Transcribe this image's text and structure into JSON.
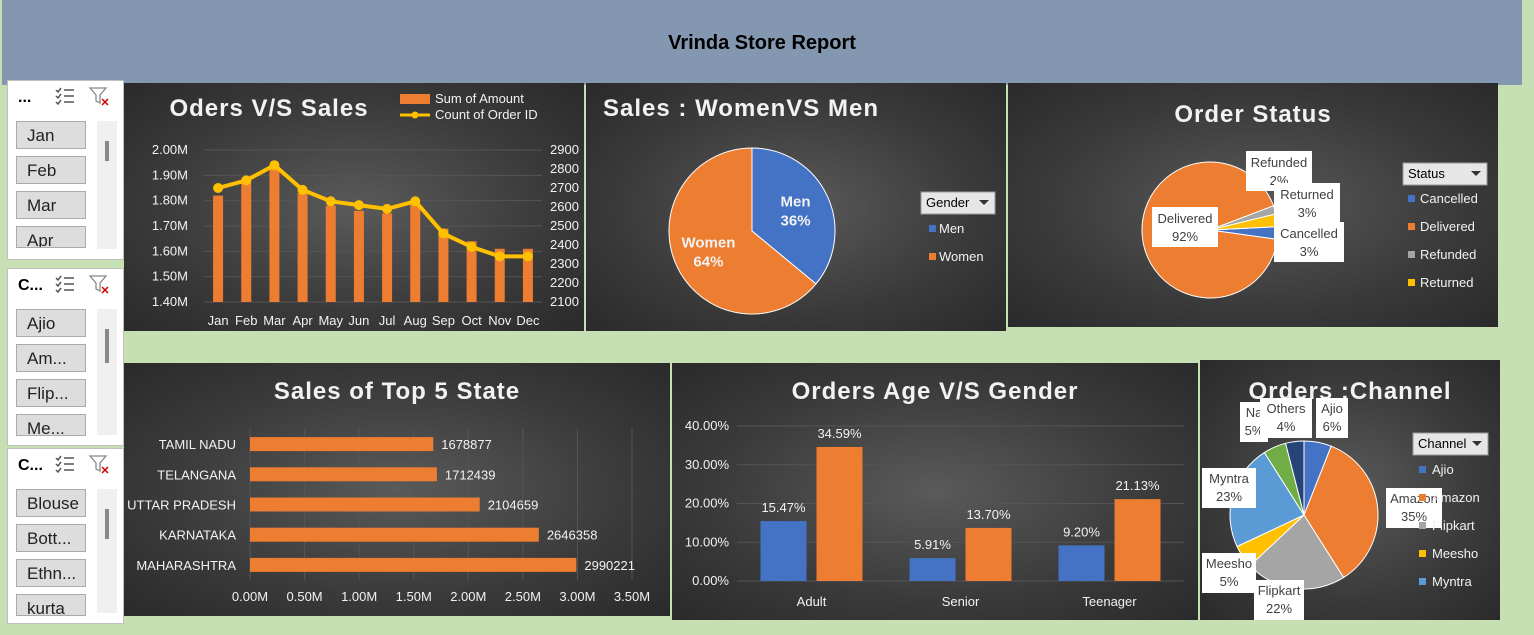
{
  "report": {
    "title": "Vrinda Store Report"
  },
  "slicers": [
    {
      "title": "...",
      "items": [
        "Jan",
        "Feb",
        "Mar",
        "Apr"
      ]
    },
    {
      "title": "C...",
      "items": [
        "Ajio",
        "Am...",
        "Flip...",
        "Me..."
      ]
    },
    {
      "title": "C...",
      "items": [
        "Blouse",
        "Bott...",
        "Ethn...",
        "kurta"
      ]
    }
  ],
  "colors": {
    "orange": "#ed7d31",
    "blue": "#4472c4",
    "gray": "#a5a5a5",
    "yellow": "#ffc000",
    "lightblue": "#5b9bd5",
    "green": "#70ad47",
    "darkblue": "#264478"
  },
  "chart_data": [
    {
      "type": "bar",
      "title": "Oders V/S Sales",
      "categories": [
        "Jan",
        "Feb",
        "Mar",
        "Apr",
        "May",
        "Jun",
        "Jul",
        "Aug",
        "Sep",
        "Oct",
        "Nov",
        "Dec"
      ],
      "series": [
        {
          "name": "Sum of Amount",
          "values": [
            1.82,
            1.88,
            1.93,
            1.83,
            1.78,
            1.76,
            1.75,
            1.79,
            1.69,
            1.64,
            1.61,
            1.61
          ]
        },
        {
          "name": "Count of Order ID",
          "type": "line",
          "values": [
            2700,
            2740,
            2820,
            2690,
            2630,
            2610,
            2590,
            2630,
            2460,
            2390,
            2340,
            2340
          ]
        }
      ],
      "yaxis_left": {
        "ticks": [
          "1.40M",
          "1.50M",
          "1.60M",
          "1.70M",
          "1.80M",
          "1.90M",
          "2.00M"
        ],
        "range": [
          1.4,
          2.0
        ]
      },
      "yaxis_right": {
        "ticks": [
          "2100",
          "2200",
          "2300",
          "2400",
          "2500",
          "2600",
          "2700",
          "2800",
          "2900"
        ],
        "range": [
          2100,
          2900
        ]
      }
    },
    {
      "type": "pie",
      "title": "Sales : WomenVS Men",
      "legend_title": "Gender",
      "slices": [
        {
          "name": "Men",
          "value": 36,
          "label": "36%"
        },
        {
          "name": "Women",
          "value": 64,
          "label": "64%"
        }
      ]
    },
    {
      "type": "pie",
      "title": "Order Status",
      "legend_title": "Status",
      "slices": [
        {
          "name": "Cancelled",
          "value": 3,
          "label": "3%"
        },
        {
          "name": "Delivered",
          "value": 92,
          "label": "92%"
        },
        {
          "name": "Refunded",
          "value": 2,
          "label": "2%"
        },
        {
          "name": "Returned",
          "value": 3,
          "label": "3%"
        }
      ]
    },
    {
      "type": "bar",
      "orientation": "horizontal",
      "title": "Sales of Top 5 State",
      "categories": [
        "TAMIL NADU",
        "TELANGANA",
        "UTTAR PRADESH",
        "KARNATAKA",
        "MAHARASHTRA"
      ],
      "values": [
        1678877,
        1712439,
        2104659,
        2646358,
        2990221
      ],
      "xaxis": {
        "ticks": [
          "0.00M",
          "0.50M",
          "1.00M",
          "1.50M",
          "2.00M",
          "2.50M",
          "3.00M",
          "3.50M"
        ],
        "range": [
          0,
          3500000
        ]
      }
    },
    {
      "type": "bar",
      "title": "Orders Age V/S Gender",
      "categories": [
        "Adult",
        "Senior",
        "Teenager"
      ],
      "series": [
        {
          "values": [
            15.47,
            5.91,
            9.2
          ],
          "labels": [
            "15.47%",
            "5.91%",
            "9.20%"
          ]
        },
        {
          "values": [
            34.59,
            13.7,
            21.13
          ],
          "labels": [
            "34.59%",
            "13.70%",
            "21.13%"
          ]
        }
      ],
      "yaxis": {
        "ticks": [
          "0.00%",
          "10.00%",
          "20.00%",
          "30.00%",
          "40.00%"
        ],
        "range": [
          0,
          40
        ]
      }
    },
    {
      "type": "pie",
      "title": "Orders :Channel",
      "legend_title": "Channel",
      "legend_items": [
        "Ajio",
        "Amazon",
        "Flipkart",
        "Meesho",
        "Myntra"
      ],
      "slices": [
        {
          "name": "Ajio",
          "value": 6,
          "label": "6%"
        },
        {
          "name": "Amazon",
          "value": 35,
          "label": "35%"
        },
        {
          "name": "Flipkart",
          "value": 22,
          "label": "22%"
        },
        {
          "name": "Meesho",
          "value": 5,
          "label": "5%"
        },
        {
          "name": "Myntra",
          "value": 23,
          "label": "23%"
        },
        {
          "name": "Na",
          "value": 5,
          "label": "5%"
        },
        {
          "name": "Others",
          "value": 4,
          "label": "4%"
        }
      ]
    }
  ]
}
